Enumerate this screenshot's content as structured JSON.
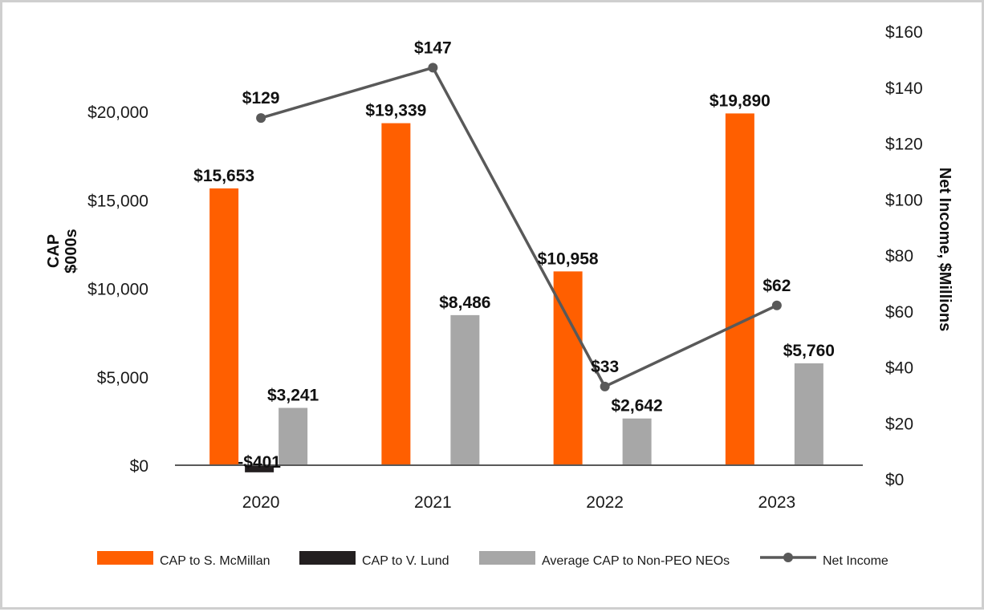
{
  "chart_data": {
    "type": "bar",
    "categories": [
      "2020",
      "2021",
      "2022",
      "2023"
    ],
    "series": [
      {
        "name": "CAP to S. McMillan",
        "color": "#ff5f00",
        "values": [
          15653,
          19339,
          10958,
          19890
        ],
        "labels": [
          "$15,653",
          "$19,339",
          "$10,958",
          "$19,890"
        ]
      },
      {
        "name": "CAP to V. Lund",
        "color": "#231f20",
        "values": [
          -401,
          null,
          null,
          null
        ],
        "labels": [
          "-$401",
          null,
          null,
          null
        ]
      },
      {
        "name": "Average CAP to Non-PEO NEOs",
        "color": "#a7a7a7",
        "values": [
          3241,
          8486,
          2642,
          5760
        ],
        "labels": [
          "$3,241",
          "$8,486",
          "$2,642",
          "$5,760"
        ]
      }
    ],
    "line_series": {
      "name": "Net Income",
      "type": "line",
      "axis": "right",
      "color": "#595959",
      "values": [
        129,
        147,
        33,
        62
      ],
      "labels": [
        "$129",
        "$147",
        "$33",
        "$62"
      ]
    },
    "left_axis": {
      "title_line1": "CAP",
      "title_line2": "$000s",
      "ylim": [
        0,
        20000
      ],
      "ticks": [
        0,
        5000,
        10000,
        15000,
        20000
      ],
      "tick_labels": [
        "$0",
        "$5,000",
        "$10,000",
        "$15,000",
        "$20,000"
      ]
    },
    "right_axis": {
      "title": "Net Income, $Millions",
      "ylim": [
        0,
        160
      ],
      "ticks": [
        0,
        20,
        40,
        60,
        80,
        100,
        120,
        140,
        160
      ],
      "tick_labels": [
        "$0",
        "$20",
        "$40",
        "$60",
        "$80",
        "$100",
        "$120",
        "$140",
        "$160"
      ]
    },
    "legend_position": "bottom",
    "grid": false
  }
}
